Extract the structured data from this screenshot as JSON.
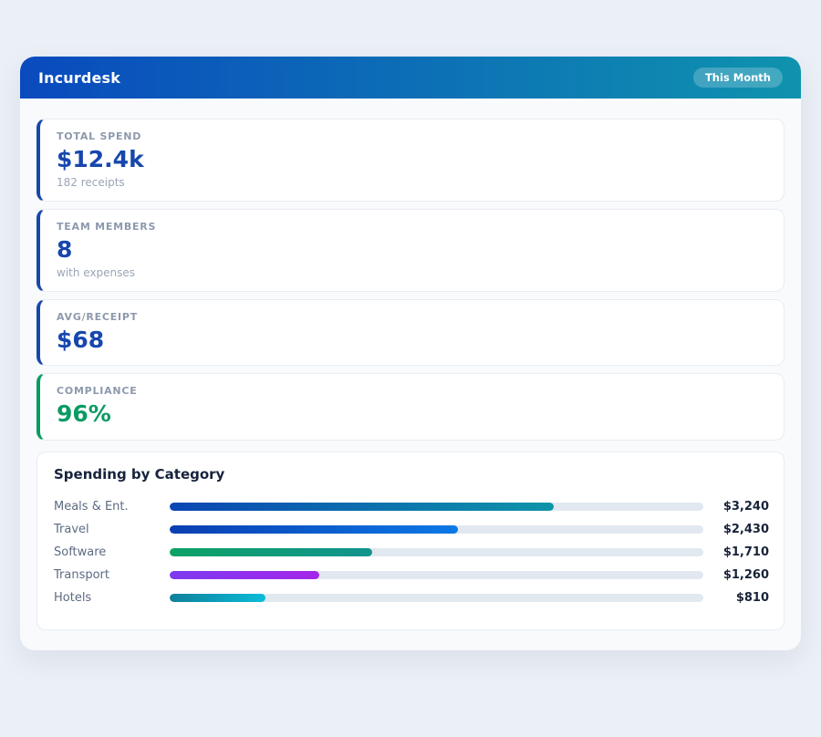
{
  "header": {
    "title": "Incurdesk",
    "period_badge": "This Month"
  },
  "stats": [
    {
      "label": "TOTAL SPEND",
      "value": "$12.4k",
      "sub": "182 receipts",
      "accent": "#1747ad"
    },
    {
      "label": "TEAM MEMBERS",
      "value": "8",
      "sub": "with expenses",
      "accent": "#1747ad"
    },
    {
      "label": "AVG/RECEIPT",
      "value": "$68",
      "sub": "",
      "accent": "#1747ad"
    },
    {
      "label": "COMPLIANCE",
      "value": "96%",
      "sub": "",
      "accent": "#0a9b63"
    }
  ],
  "chart_data": {
    "type": "bar",
    "title": "Spending by Category",
    "orientation": "horizontal",
    "categories": [
      "Meals & Ent.",
      "Travel",
      "Software",
      "Transport",
      "Hotels"
    ],
    "values": [
      3240,
      2430,
      1710,
      1260,
      810
    ],
    "value_labels": [
      "$3,240",
      "$2,430",
      "$1,710",
      "$1,260",
      "$810"
    ],
    "xlim": [
      0,
      4500
    ],
    "grid": false,
    "legend": false,
    "track_color": "#e2e8f0",
    "bar_gradients": [
      [
        "#0b46b4",
        "#0e95a8"
      ],
      [
        "#0a3fb2",
        "#0b79e6"
      ],
      [
        "#0ca266",
        "#13938e"
      ],
      [
        "#7d3af0",
        "#a526e9"
      ],
      [
        "#0e809c",
        "#0bbcd9"
      ]
    ]
  }
}
